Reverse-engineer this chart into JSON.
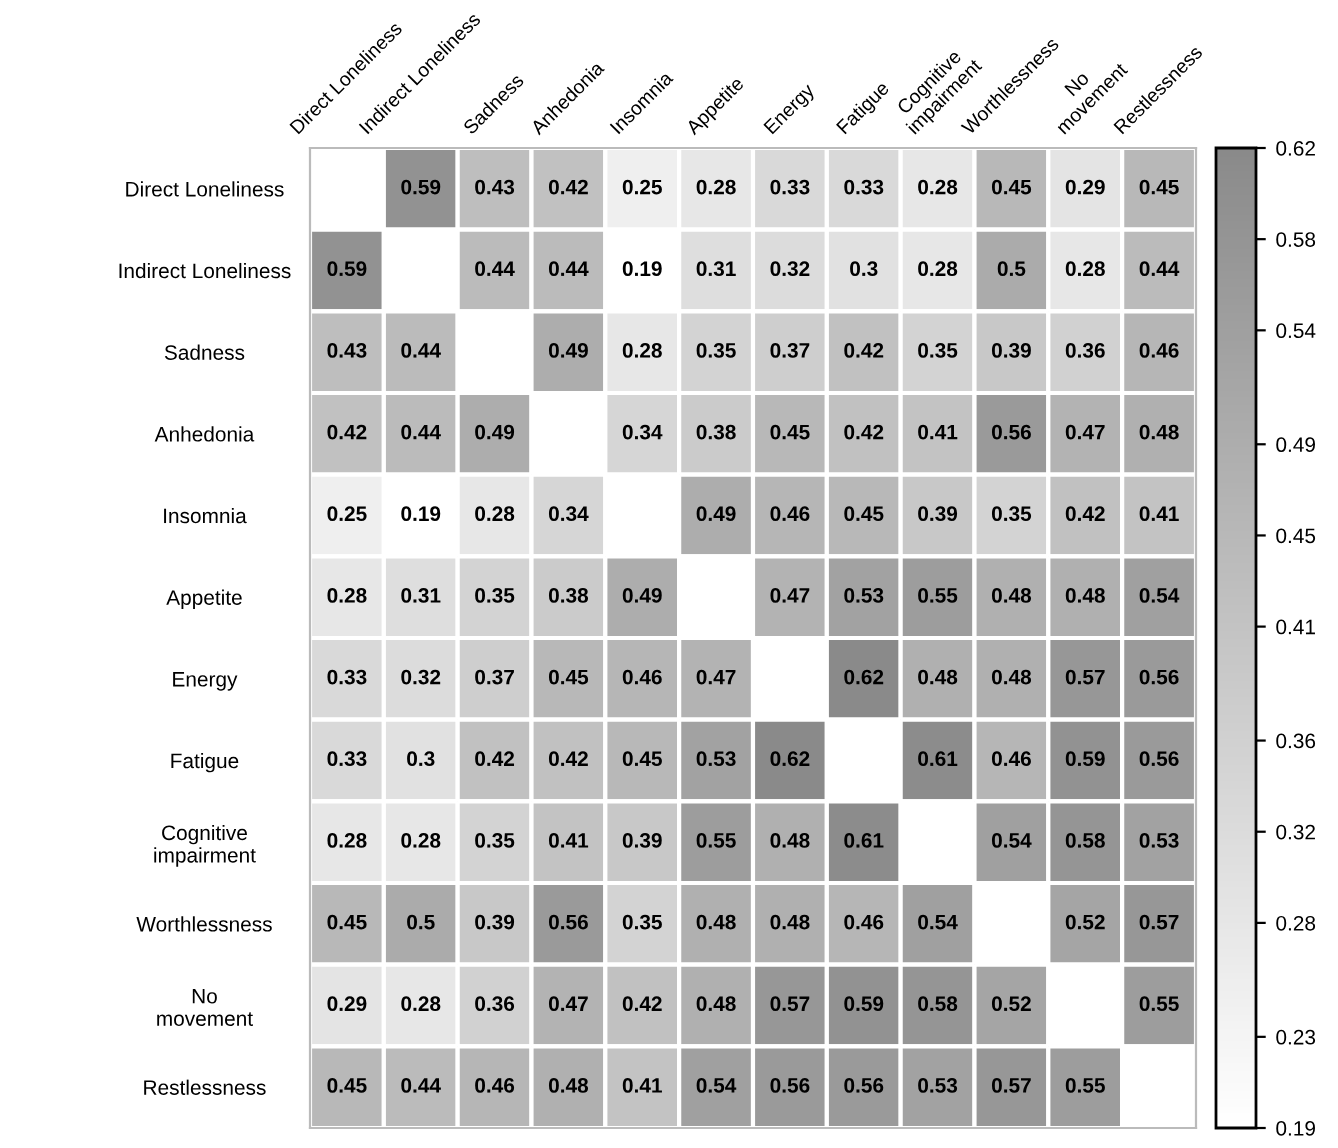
{
  "chart_data": {
    "type": "heatmap",
    "categories": [
      "Direct Loneliness",
      "Indirect Loneliness",
      "Sadness",
      "Anhedonia",
      "Insomnia",
      "Appetite",
      "Energy",
      "Fatigue",
      "Cognitive\nimpairment",
      "Worthlessness",
      "No\nmovement",
      "Restlessness"
    ],
    "y_categories": [
      "Direct Loneliness",
      "Indirect Loneliness",
      "Sadness",
      "Anhedonia",
      "Insomnia",
      "Appetite",
      "Energy",
      "Fatigue",
      "Cognitive\nimpairment",
      "Worthlessness",
      "No\nmovement",
      "Restlessness"
    ],
    "cells": [
      [
        null,
        0.59,
        0.43,
        0.42,
        0.25,
        0.28,
        0.33,
        0.33,
        0.28,
        0.45,
        0.29,
        0.45
      ],
      [
        0.59,
        null,
        0.44,
        0.44,
        0.19,
        0.31,
        0.32,
        0.3,
        0.28,
        0.5,
        0.28,
        0.44
      ],
      [
        0.43,
        0.44,
        null,
        0.49,
        0.28,
        0.35,
        0.37,
        0.42,
        0.35,
        0.39,
        0.36,
        0.46
      ],
      [
        0.42,
        0.44,
        0.49,
        null,
        0.34,
        0.38,
        0.45,
        0.42,
        0.41,
        0.56,
        0.47,
        0.48
      ],
      [
        0.25,
        0.19,
        0.28,
        0.34,
        null,
        0.49,
        0.46,
        0.45,
        0.39,
        0.35,
        0.42,
        0.41
      ],
      [
        0.28,
        0.31,
        0.35,
        0.38,
        0.49,
        null,
        0.47,
        0.53,
        0.55,
        0.48,
        0.48,
        0.54
      ],
      [
        0.33,
        0.32,
        0.37,
        0.45,
        0.46,
        0.47,
        null,
        0.62,
        0.48,
        0.48,
        0.57,
        0.56
      ],
      [
        0.33,
        0.3,
        0.42,
        0.42,
        0.45,
        0.53,
        0.62,
        null,
        0.61,
        0.46,
        0.59,
        0.56
      ],
      [
        0.28,
        0.28,
        0.35,
        0.41,
        0.39,
        0.55,
        0.48,
        0.61,
        null,
        0.54,
        0.58,
        0.53
      ],
      [
        0.45,
        0.5,
        0.39,
        0.56,
        0.35,
        0.48,
        0.48,
        0.46,
        0.54,
        null,
        0.52,
        0.57
      ],
      [
        0.29,
        0.28,
        0.36,
        0.47,
        0.42,
        0.48,
        0.57,
        0.59,
        0.58,
        0.52,
        null,
        0.55
      ],
      [
        0.45,
        0.44,
        0.46,
        0.48,
        0.41,
        0.54,
        0.56,
        0.56,
        0.53,
        0.57,
        0.55,
        null
      ]
    ],
    "clim": [
      0.19,
      0.62
    ],
    "cticks": [
      0.19,
      0.23,
      0.28,
      0.32,
      0.36,
      0.41,
      0.45,
      0.49,
      0.54,
      0.58,
      0.62
    ],
    "data_labels": true
  }
}
